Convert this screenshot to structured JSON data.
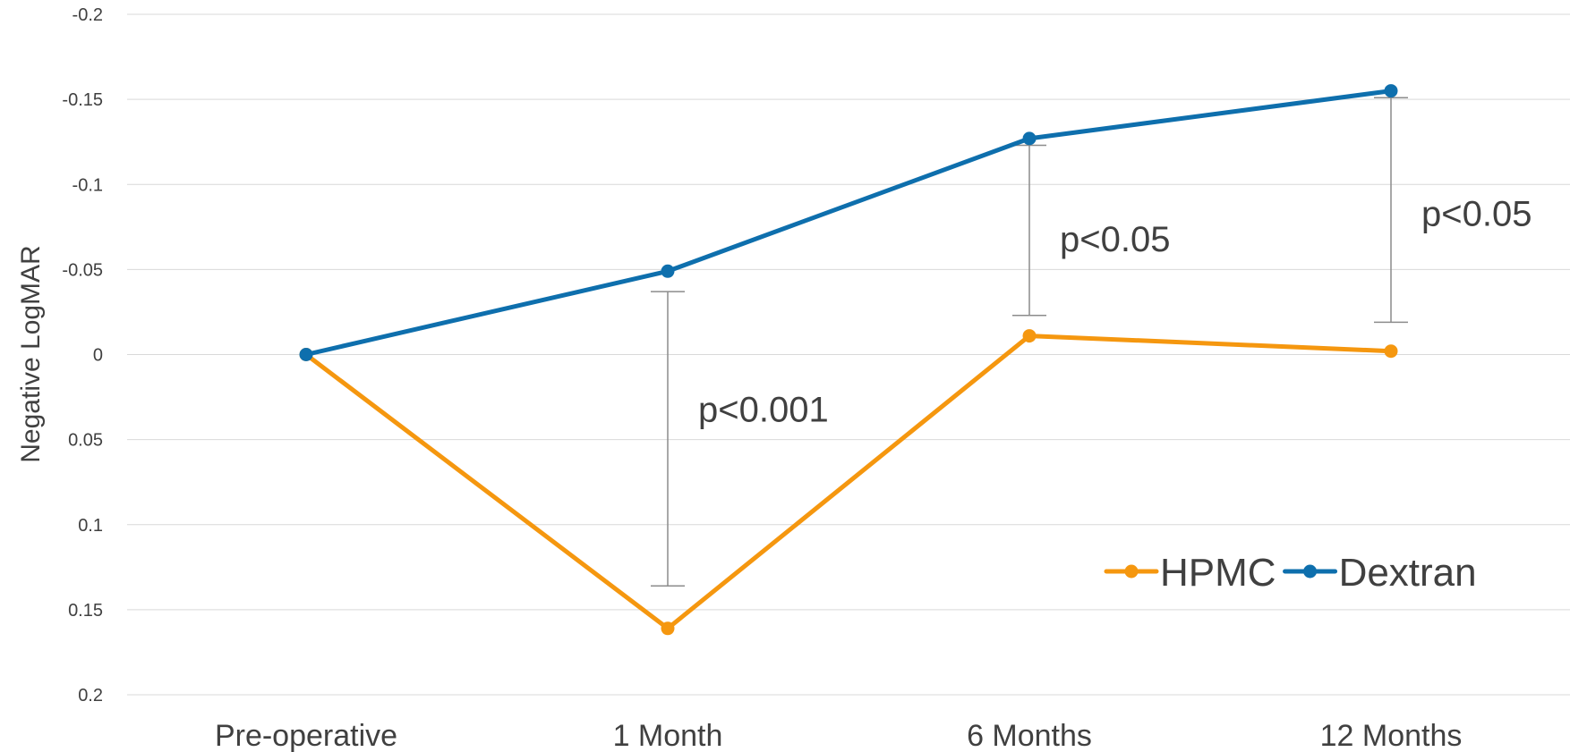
{
  "chart_data": {
    "type": "line",
    "xlabel": "",
    "ylabel": "Negative LogMAR",
    "y_reversed": true,
    "ylim": [
      -0.2,
      0.2
    ],
    "yticks": [
      -0.2,
      -0.15,
      -0.1,
      -0.05,
      0,
      0.05,
      0.1,
      0.15,
      0.2
    ],
    "ytick_labels": [
      "-0.2",
      "-0.15",
      "-0.1",
      "-0.05",
      "0",
      "0.05",
      "0.1",
      "0.15",
      "0.2"
    ],
    "grid": true,
    "categories": [
      "Pre-operative",
      "1 Month",
      "6 Months",
      "12 Months"
    ],
    "series": [
      {
        "name": "HPMC",
        "color": "#f5970f",
        "values": [
          0.0,
          0.161,
          -0.011,
          -0.002
        ]
      },
      {
        "name": "Dextran",
        "color": "#0e6fad",
        "values": [
          0.0,
          -0.049,
          -0.127,
          -0.155
        ]
      }
    ],
    "error_bars": [
      {
        "category_index": 1,
        "low": -0.037,
        "high": 0.136
      },
      {
        "category_index": 2,
        "low": -0.123,
        "high": -0.023
      },
      {
        "category_index": 3,
        "low": -0.151,
        "high": -0.019
      }
    ],
    "annotations": [
      {
        "text": "p<0.001",
        "category_index": 1,
        "y": 0.032
      },
      {
        "text": "p<0.05",
        "category_index": 2,
        "y": -0.068
      },
      {
        "text": "p<0.05",
        "category_index": 3,
        "y": -0.083
      }
    ],
    "legend": {
      "position": "bottom-right",
      "entries": [
        "HPMC",
        "Dextran"
      ]
    }
  }
}
